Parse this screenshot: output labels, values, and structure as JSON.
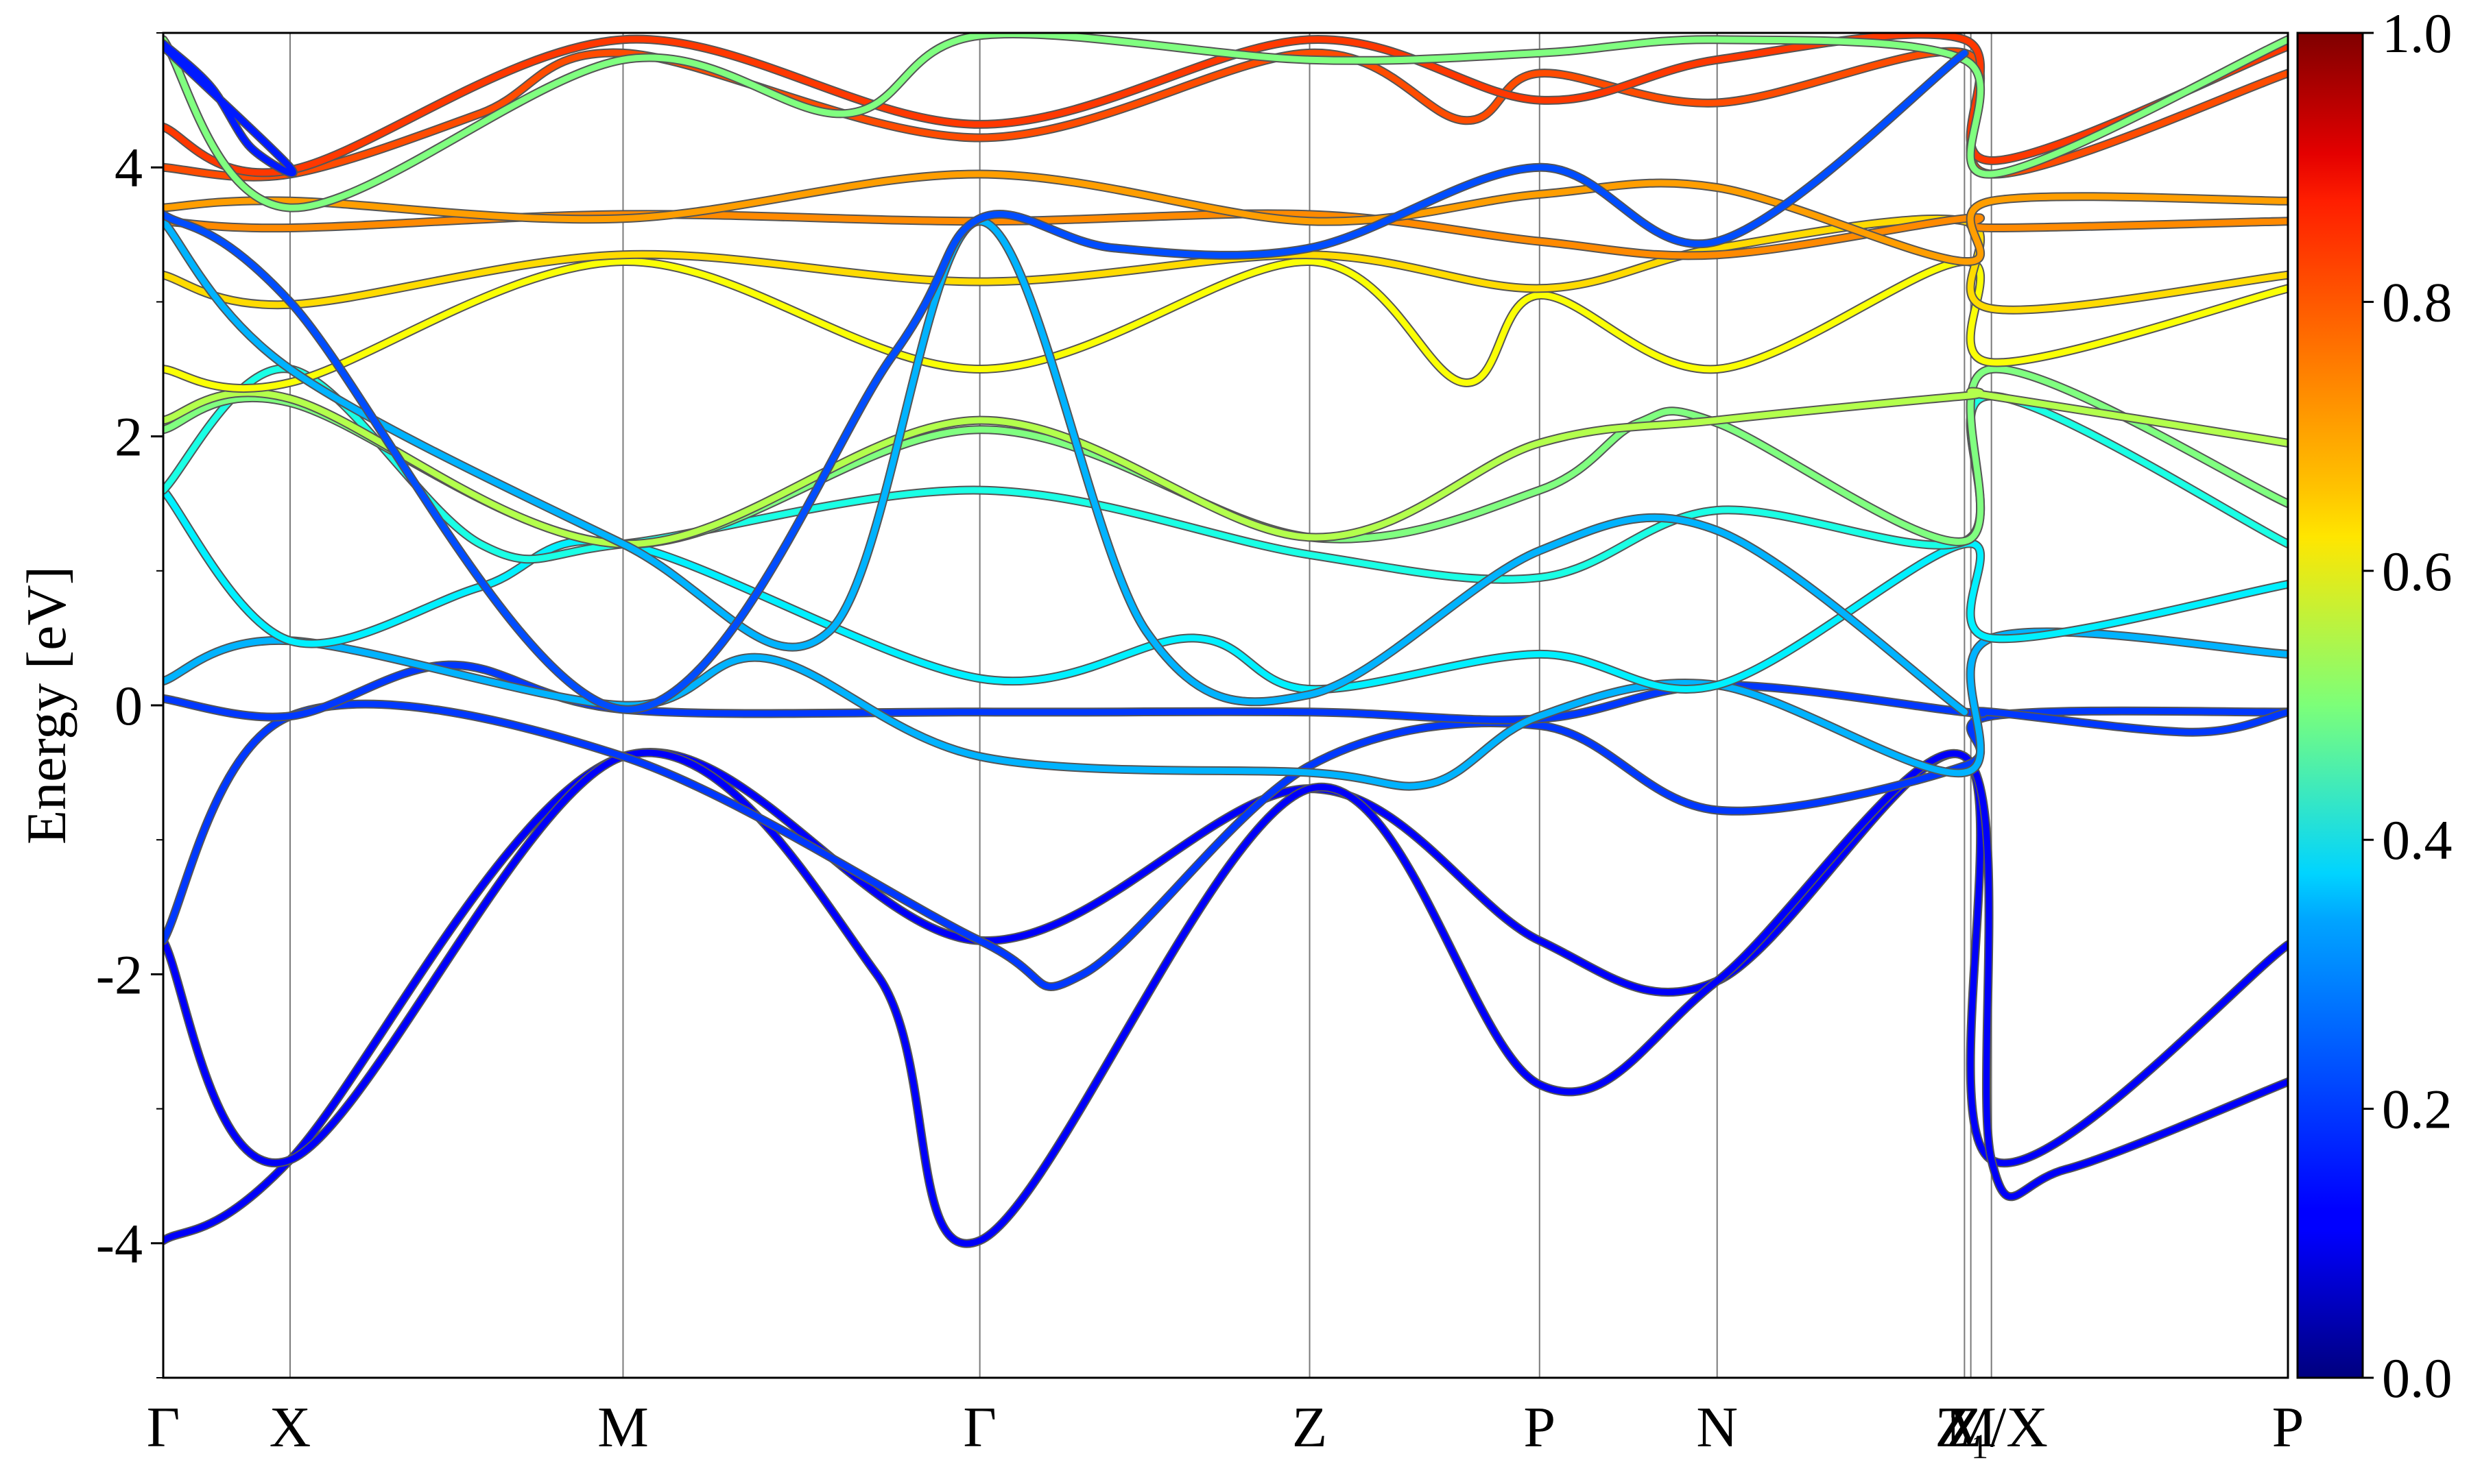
{
  "chart_data": {
    "type": "line",
    "title": "",
    "xlabel": "",
    "ylabel": "Energy [eV]",
    "ylim": [
      -5,
      5
    ],
    "xlim": [
      0,
      13.4
    ],
    "grid": false,
    "y_ticks": [
      "-4",
      "-2",
      "0",
      "2",
      "4"
    ],
    "y_tick_values": [
      -4,
      -2,
      0,
      2,
      4
    ],
    "y_minor_ticks": [
      -5,
      -3,
      -1,
      1,
      3,
      5
    ],
    "high_symmetry_points": [
      {
        "label": "Γ",
        "k": 0.0
      },
      {
        "label": "X",
        "k": 0.8
      },
      {
        "label": "M",
        "k": 2.9
      },
      {
        "label": "Γ",
        "k": 5.15
      },
      {
        "label": "Z",
        "k": 7.23
      },
      {
        "label": "P",
        "k": 8.68
      },
      {
        "label": "N",
        "k": 9.8
      },
      {
        "label": "Z",
        "k": 11.36
      },
      {
        "label": "M",
        "k": 11.4
      },
      {
        "label": "Z₁/X",
        "k": 11.53
      },
      {
        "label": "P",
        "k": 13.4
      }
    ],
    "colorbar": {
      "colormap": "jet",
      "min": 0.0,
      "max": 1.0,
      "ticks": [
        "0.0",
        "0.2",
        "0.4",
        "0.6",
        "0.8",
        "1.0"
      ],
      "tick_values": [
        0.0,
        0.2,
        0.4,
        0.6,
        0.8,
        1.0
      ]
    },
    "series": [
      {
        "points": [
          [
            0,
            -3.98
          ],
          [
            0.8,
            -3.38
          ],
          [
            2.9,
            -0.38
          ],
          [
            5.15,
            -1.75
          ],
          [
            7.23,
            -0.62
          ],
          [
            8.68,
            -1.75
          ],
          [
            9.8,
            -2.05
          ],
          [
            11.36,
            -0.38
          ],
          [
            11.53,
            -3.38
          ],
          [
            13.4,
            -1.78
          ]
        ],
        "weight": 0.12
      },
      {
        "points": [
          [
            0,
            -1.75
          ],
          [
            0.8,
            -3.38
          ],
          [
            2.9,
            -0.38
          ],
          [
            4.5,
            -2.0
          ],
          [
            5.15,
            -3.98
          ],
          [
            7.23,
            -0.62
          ],
          [
            8.68,
            -2.82
          ],
          [
            9.8,
            -2.05
          ],
          [
            11.36,
            -0.38
          ],
          [
            11.53,
            -3.38
          ],
          [
            12.0,
            -3.45
          ],
          [
            13.4,
            -2.8
          ]
        ],
        "weight": 0.12
      },
      {
        "points": [
          [
            0,
            -1.75
          ],
          [
            0.8,
            -0.08
          ],
          [
            2.9,
            -0.38
          ],
          [
            5.15,
            -1.75
          ],
          [
            5.8,
            -2.0
          ],
          [
            7.23,
            -0.45
          ],
          [
            8.68,
            -0.15
          ],
          [
            9.8,
            -0.78
          ],
          [
            11.36,
            -0.45
          ],
          [
            11.53,
            -0.08
          ],
          [
            13.4,
            -0.05
          ]
        ],
        "weight": 0.18
      },
      {
        "points": [
          [
            0,
            0.05
          ],
          [
            0.8,
            -0.08
          ],
          [
            1.8,
            0.3
          ],
          [
            2.9,
            -0.03
          ],
          [
            5.15,
            -0.05
          ],
          [
            7.23,
            -0.05
          ],
          [
            8.68,
            -0.1
          ],
          [
            9.8,
            0.15
          ],
          [
            11.36,
            -0.05
          ],
          [
            11.53,
            -0.05
          ],
          [
            12.8,
            -0.2
          ],
          [
            13.4,
            -0.05
          ]
        ],
        "weight": 0.18
      },
      {
        "points": [
          [
            0,
            0.18
          ],
          [
            0.8,
            0.48
          ],
          [
            2.9,
            0.0
          ],
          [
            3.8,
            0.35
          ],
          [
            5.15,
            -0.38
          ],
          [
            7.23,
            -0.5
          ],
          [
            8.0,
            -0.58
          ],
          [
            8.68,
            -0.08
          ],
          [
            9.8,
            0.15
          ],
          [
            11.36,
            -0.5
          ],
          [
            11.53,
            0.5
          ],
          [
            13.4,
            0.38
          ]
        ],
        "weight": 0.3
      },
      {
        "points": [
          [
            0,
            1.6
          ],
          [
            0.8,
            0.48
          ],
          [
            2.0,
            0.88
          ],
          [
            2.9,
            1.2
          ],
          [
            5.15,
            0.2
          ],
          [
            6.5,
            0.5
          ],
          [
            7.23,
            0.12
          ],
          [
            8.68,
            0.38
          ],
          [
            9.8,
            0.15
          ],
          [
            11.36,
            1.2
          ],
          [
            11.53,
            0.5
          ],
          [
            13.4,
            0.9
          ]
        ],
        "weight": 0.36
      },
      {
        "points": [
          [
            0,
            1.6
          ],
          [
            0.8,
            2.5
          ],
          [
            2.0,
            1.2
          ],
          [
            2.9,
            1.2
          ],
          [
            5.15,
            1.6
          ],
          [
            7.23,
            1.12
          ],
          [
            8.68,
            0.95
          ],
          [
            9.8,
            1.45
          ],
          [
            11.36,
            1.22
          ],
          [
            11.53,
            2.3
          ],
          [
            13.4,
            1.2
          ]
        ],
        "weight": 0.4
      },
      {
        "points": [
          [
            0,
            2.05
          ],
          [
            0.8,
            2.25
          ],
          [
            2.9,
            1.2
          ],
          [
            5.15,
            2.05
          ],
          [
            7.23,
            1.25
          ],
          [
            8.68,
            1.6
          ],
          [
            9.3,
            2.1
          ],
          [
            9.8,
            2.1
          ],
          [
            11.36,
            1.22
          ],
          [
            11.53,
            2.5
          ],
          [
            13.4,
            1.5
          ]
        ],
        "weight": 0.5
      },
      {
        "points": [
          [
            0,
            2.12
          ],
          [
            0.8,
            2.28
          ],
          [
            2.9,
            1.2
          ],
          [
            5.15,
            2.12
          ],
          [
            7.23,
            1.25
          ],
          [
            8.68,
            1.95
          ],
          [
            9.8,
            2.12
          ],
          [
            11.36,
            2.3
          ],
          [
            11.53,
            2.3
          ],
          [
            13.4,
            1.95
          ]
        ],
        "weight": 0.55
      },
      {
        "points": [
          [
            0,
            2.5
          ],
          [
            0.8,
            2.4
          ],
          [
            2.9,
            3.3
          ],
          [
            5.15,
            2.5
          ],
          [
            7.23,
            3.3
          ],
          [
            8.2,
            2.4
          ],
          [
            8.68,
            3.05
          ],
          [
            9.8,
            2.5
          ],
          [
            11.36,
            3.3
          ],
          [
            11.53,
            2.55
          ],
          [
            13.4,
            3.1
          ]
        ],
        "weight": 0.62
      },
      {
        "points": [
          [
            0,
            3.2
          ],
          [
            0.8,
            2.98
          ],
          [
            2.9,
            3.35
          ],
          [
            5.15,
            3.15
          ],
          [
            7.23,
            3.35
          ],
          [
            8.68,
            3.1
          ],
          [
            9.8,
            3.4
          ],
          [
            11.36,
            3.6
          ],
          [
            11.53,
            2.95
          ],
          [
            13.4,
            3.2
          ]
        ],
        "weight": 0.66
      },
      {
        "points": [
          [
            0,
            3.6
          ],
          [
            0.8,
            3.55
          ],
          [
            2.9,
            3.65
          ],
          [
            5.15,
            3.6
          ],
          [
            7.23,
            3.65
          ],
          [
            8.68,
            3.45
          ],
          [
            9.8,
            3.35
          ],
          [
            11.36,
            3.62
          ],
          [
            11.53,
            3.55
          ],
          [
            13.4,
            3.6
          ]
        ],
        "weight": 0.74
      },
      {
        "points": [
          [
            0,
            3.7
          ],
          [
            0.8,
            3.75
          ],
          [
            2.9,
            3.62
          ],
          [
            5.15,
            3.95
          ],
          [
            7.23,
            3.6
          ],
          [
            8.68,
            3.8
          ],
          [
            9.8,
            3.85
          ],
          [
            11.36,
            3.3
          ],
          [
            11.53,
            3.75
          ],
          [
            13.4,
            3.75
          ]
        ],
        "weight": 0.72
      },
      {
        "points": [
          [
            0,
            4.0
          ],
          [
            0.8,
            3.95
          ],
          [
            2.0,
            4.4
          ],
          [
            2.9,
            4.85
          ],
          [
            5.15,
            4.22
          ],
          [
            7.23,
            4.85
          ],
          [
            8.2,
            4.35
          ],
          [
            8.68,
            4.7
          ],
          [
            9.8,
            4.48
          ],
          [
            11.36,
            4.85
          ],
          [
            11.53,
            3.95
          ],
          [
            13.4,
            4.7
          ]
        ],
        "weight": 0.8
      },
      {
        "points": [
          [
            0,
            4.3
          ],
          [
            0.8,
            3.98
          ],
          [
            2.9,
            4.95
          ],
          [
            5.15,
            4.32
          ],
          [
            7.23,
            4.95
          ],
          [
            8.68,
            4.5
          ],
          [
            9.8,
            4.8
          ],
          [
            11.36,
            4.95
          ],
          [
            11.53,
            4.05
          ],
          [
            13.4,
            4.9
          ]
        ],
        "weight": 0.82
      },
      {
        "points": [
          [
            0,
            4.95
          ],
          [
            0.8,
            3.7
          ],
          [
            2.9,
            4.8
          ],
          [
            4.3,
            4.4
          ],
          [
            5.15,
            4.98
          ],
          [
            7.23,
            4.8
          ],
          [
            8.68,
            4.85
          ],
          [
            9.8,
            4.95
          ],
          [
            11.36,
            4.8
          ],
          [
            11.53,
            3.95
          ],
          [
            13.4,
            4.95
          ]
        ],
        "weight": 0.5
      },
      {
        "points": [
          [
            0,
            4.9
          ],
          [
            0.8,
            4.0
          ],
          [
            0.55,
            4.15
          ],
          [
            0.3,
            4.6
          ],
          [
            0,
            4.92
          ]
        ],
        "weight": 0.15
      },
      {
        "points": [
          [
            0,
            3.6
          ],
          [
            0.8,
            2.5
          ],
          [
            2.9,
            1.2
          ],
          [
            4.2,
            0.55
          ],
          [
            5.15,
            3.6
          ],
          [
            6.2,
            0.55
          ],
          [
            7.23,
            0.08
          ],
          [
            8.68,
            1.15
          ],
          [
            9.8,
            1.3
          ],
          [
            11.36,
            -0.05
          ]
        ],
        "weight": 0.3
      },
      {
        "points": [
          [
            0,
            3.65
          ],
          [
            0.8,
            3.0
          ],
          [
            2.9,
            -0.03
          ],
          [
            4.6,
            2.6
          ],
          [
            5.15,
            3.62
          ],
          [
            6.0,
            3.4
          ],
          [
            7.23,
            3.4
          ],
          [
            8.68,
            4.0
          ],
          [
            9.8,
            3.45
          ],
          [
            11.36,
            4.85
          ]
        ],
        "weight": 0.2
      }
    ]
  }
}
